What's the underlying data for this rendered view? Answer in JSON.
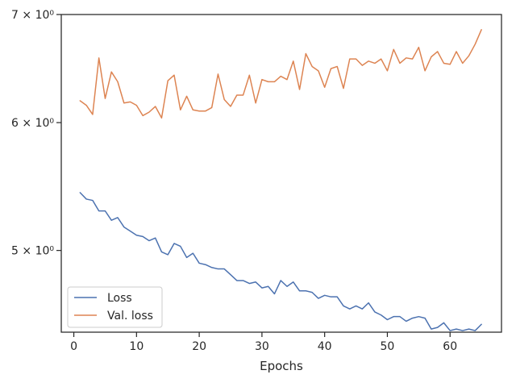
{
  "chart_data": {
    "type": "line",
    "xlabel": "Epochs",
    "ylabel": "",
    "yscale": "log",
    "xlim": [
      -2,
      68.2
    ],
    "ylim": [
      4.45,
      7.0
    ],
    "xticks": [
      0,
      10,
      20,
      30,
      40,
      50,
      60
    ],
    "xtick_labels": [
      "0",
      "10",
      "20",
      "30",
      "40",
      "50",
      "60"
    ],
    "yticks": [
      5,
      6,
      7
    ],
    "ytick_labels": [
      "5 × 10⁰",
      "6 × 10⁰",
      "7 × 10⁰"
    ],
    "grid": false,
    "legend_position": "lower-left",
    "x": [
      1,
      2,
      3,
      4,
      5,
      6,
      7,
      8,
      9,
      10,
      11,
      12,
      13,
      14,
      15,
      16,
      17,
      18,
      19,
      20,
      21,
      22,
      23,
      24,
      25,
      26,
      27,
      28,
      29,
      30,
      31,
      32,
      33,
      34,
      35,
      36,
      37,
      38,
      39,
      40,
      41,
      42,
      43,
      44,
      45,
      46,
      47,
      48,
      49,
      50,
      51,
      52,
      53,
      54,
      55,
      56,
      57,
      58,
      59,
      60,
      61,
      62,
      63,
      64,
      65
    ],
    "series": [
      {
        "name": "Loss",
        "color": "#4c72b0",
        "values": [
          5.43,
          5.38,
          5.37,
          5.29,
          5.29,
          5.22,
          5.24,
          5.17,
          5.14,
          5.11,
          5.1,
          5.07,
          5.09,
          4.99,
          4.97,
          5.05,
          5.03,
          4.95,
          4.98,
          4.91,
          4.9,
          4.88,
          4.87,
          4.87,
          4.83,
          4.79,
          4.79,
          4.77,
          4.78,
          4.74,
          4.75,
          4.7,
          4.79,
          4.75,
          4.78,
          4.72,
          4.72,
          4.71,
          4.67,
          4.69,
          4.68,
          4.68,
          4.62,
          4.6,
          4.62,
          4.6,
          4.64,
          4.58,
          4.56,
          4.53,
          4.55,
          4.55,
          4.52,
          4.54,
          4.55,
          4.54,
          4.47,
          4.48,
          4.51,
          4.46,
          4.47,
          4.46,
          4.47,
          4.46,
          4.5
        ]
      },
      {
        "name": "Val. loss",
        "color": "#dd8452",
        "values": [
          6.19,
          6.15,
          6.07,
          6.58,
          6.21,
          6.45,
          6.36,
          6.17,
          6.18,
          6.15,
          6.06,
          6.09,
          6.14,
          6.04,
          6.37,
          6.42,
          6.11,
          6.23,
          6.11,
          6.1,
          6.1,
          6.13,
          6.43,
          6.2,
          6.14,
          6.24,
          6.24,
          6.42,
          6.17,
          6.38,
          6.36,
          6.36,
          6.41,
          6.38,
          6.55,
          6.29,
          6.62,
          6.5,
          6.46,
          6.31,
          6.48,
          6.5,
          6.3,
          6.57,
          6.57,
          6.51,
          6.55,
          6.53,
          6.57,
          6.46,
          6.66,
          6.53,
          6.58,
          6.57,
          6.68,
          6.46,
          6.59,
          6.64,
          6.53,
          6.52,
          6.64,
          6.53,
          6.6,
          6.71,
          6.85
        ]
      }
    ]
  }
}
